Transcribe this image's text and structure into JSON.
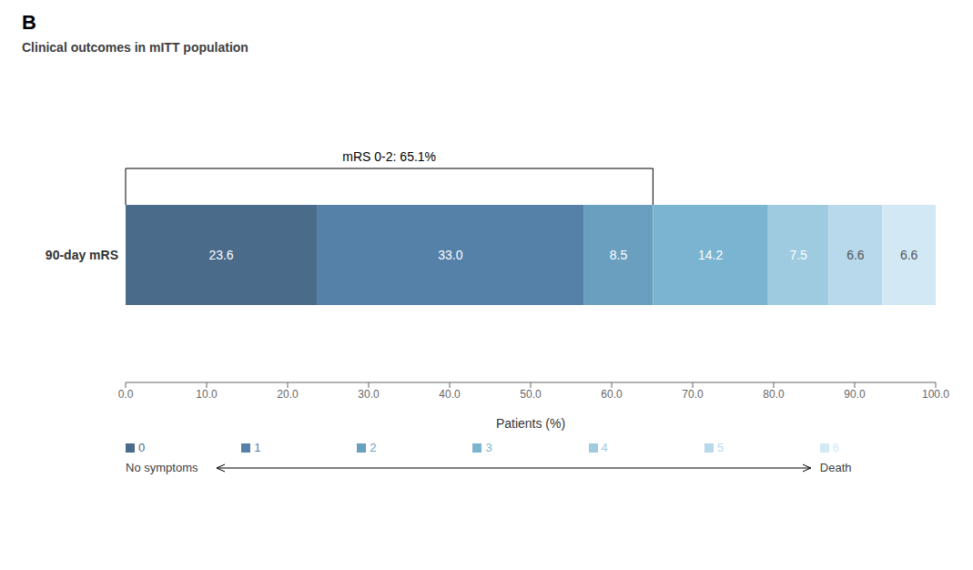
{
  "chart_data": {
    "type": "bar",
    "orientation": "horizontal",
    "stacked": true,
    "data_labels": true,
    "title": "B",
    "subtitle": "Clinical outcomes in mITT population",
    "categories": [
      "90-day mRS"
    ],
    "series": [
      {
        "name": "0",
        "color": "#4A6B8A",
        "values": [
          23.6
        ],
        "value_labels": [
          "23.6"
        ]
      },
      {
        "name": "1",
        "color": "#5580A8",
        "values": [
          33.0
        ],
        "value_labels": [
          "33.0"
        ]
      },
      {
        "name": "2",
        "color": "#6A9FBF",
        "values": [
          8.5
        ],
        "value_labels": [
          "8.5"
        ]
      },
      {
        "name": "3",
        "color": "#7BB4D0",
        "values": [
          14.2
        ],
        "value_labels": [
          "14.2"
        ]
      },
      {
        "name": "4",
        "color": "#9ECBE0",
        "values": [
          7.5
        ],
        "value_labels": [
          "7.5"
        ]
      },
      {
        "name": "5",
        "color": "#B8D8EC",
        "values": [
          6.6
        ],
        "value_labels": [
          "6.6"
        ]
      },
      {
        "name": "6",
        "color": "#D2E8F5",
        "values": [
          6.6
        ],
        "value_labels": [
          "6.6"
        ]
      }
    ],
    "xlabel": "Patients (%)",
    "xlim": [
      0,
      100
    ],
    "xticks": [
      {
        "value": 0,
        "label": "0.0"
      },
      {
        "value": 10,
        "label": "10.0"
      },
      {
        "value": 20,
        "label": "20.0"
      },
      {
        "value": 30,
        "label": "30.0"
      },
      {
        "value": 40,
        "label": "40.0"
      },
      {
        "value": 50,
        "label": "50.0"
      },
      {
        "value": 60,
        "label": "60.0"
      },
      {
        "value": 70,
        "label": "70.0"
      },
      {
        "value": 80,
        "label": "80.0"
      },
      {
        "value": 90,
        "label": "90.0"
      },
      {
        "value": 100,
        "label": "100.0"
      }
    ],
    "legend": "bottom",
    "annotations": [
      {
        "text": "mRS 0-2: 65.1%",
        "x_start": 0,
        "x_end": 65.1
      },
      {
        "text": "No symptoms",
        "series": "0"
      },
      {
        "text": "Death",
        "series": "6"
      }
    ]
  }
}
